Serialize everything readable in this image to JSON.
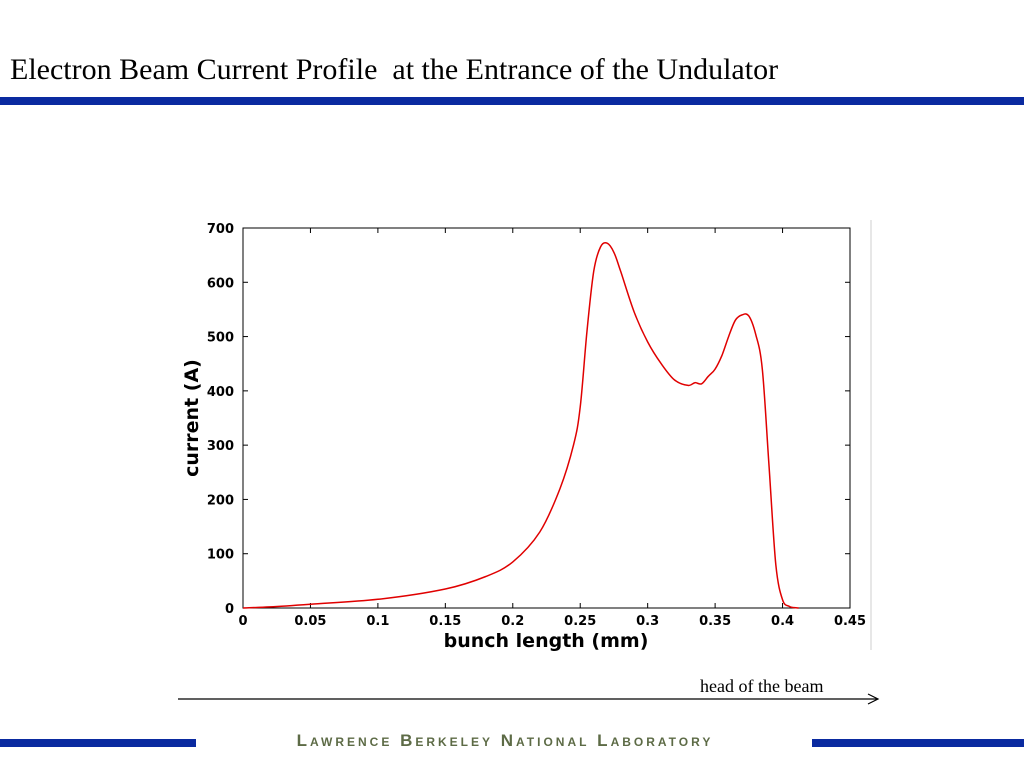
{
  "slide": {
    "title": "Electron Beam Current Profile  at the Entrance of the Undulator",
    "annotation": "head of the beam",
    "footer": "Lawrence Berkeley National Laboratory",
    "accent_color": "#0a2aa0",
    "footer_text_color": "#5d6b46"
  },
  "chart_data": {
    "type": "line",
    "xlabel": "bunch length (mm)",
    "ylabel": "current (A)",
    "xlim": [
      0,
      0.45
    ],
    "ylim": [
      0,
      700
    ],
    "xticks": [
      "0",
      "0.05",
      "0.1",
      "0.15",
      "0.2",
      "0.25",
      "0.3",
      "0.35",
      "0.4",
      "0.45"
    ],
    "yticks": [
      "0",
      "100",
      "200",
      "300",
      "400",
      "500",
      "600",
      "700"
    ],
    "grid": false,
    "line_color": "#e00000",
    "series": [
      {
        "x": [
          0,
          0.02,
          0.05,
          0.1,
          0.15,
          0.18,
          0.2,
          0.22,
          0.235,
          0.245,
          0.25,
          0.255,
          0.26,
          0.265,
          0.27,
          0.275,
          0.28,
          0.29,
          0.3,
          0.31,
          0.32,
          0.33,
          0.335,
          0.34,
          0.345,
          0.35,
          0.355,
          0.36,
          0.365,
          0.37,
          0.375,
          0.38,
          0.385,
          0.39,
          0.395,
          0.4,
          0.405,
          0.408,
          0.412
        ],
        "y": [
          0,
          2,
          7,
          16,
          35,
          58,
          85,
          140,
          220,
          300,
          370,
          510,
          620,
          665,
          672,
          655,
          620,
          545,
          490,
          450,
          420,
          410,
          415,
          413,
          427,
          440,
          465,
          500,
          530,
          540,
          538,
          505,
          440,
          260,
          80,
          15,
          3,
          1,
          0
        ]
      }
    ]
  }
}
